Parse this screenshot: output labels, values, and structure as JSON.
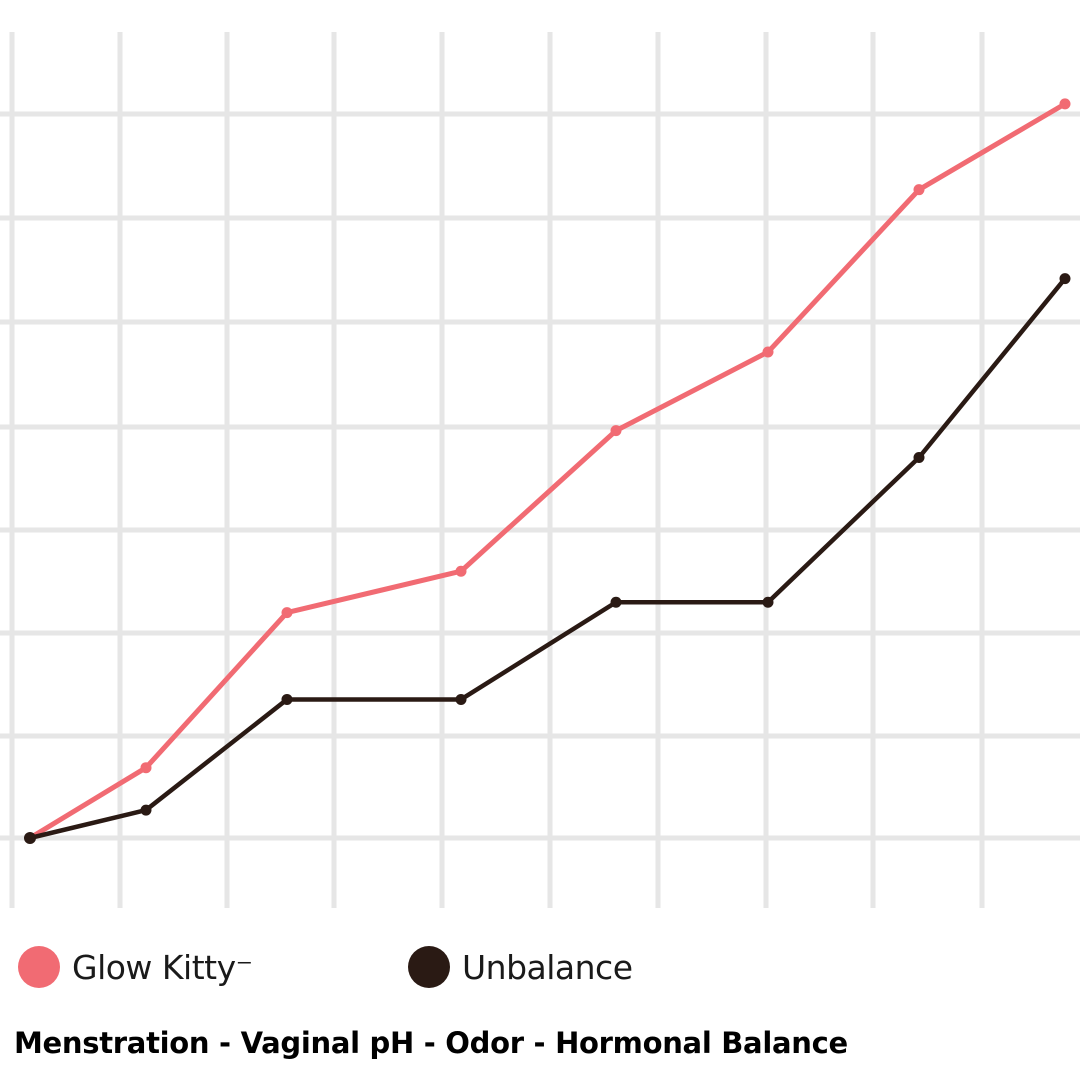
{
  "chart_data": {
    "type": "line",
    "title": "",
    "xlabel": "",
    "ylabel": "",
    "x": [
      0,
      1,
      2,
      3,
      4,
      5,
      6,
      7
    ],
    "ylim": [
      0,
      7.2
    ],
    "grid": true,
    "legend_position": "bottom",
    "series": [
      {
        "name": "Glow Kitty",
        "color": "#f16b73",
        "values": [
          0,
          0.68,
          2.18,
          2.58,
          3.94,
          4.7,
          6.27,
          7.1
        ]
      },
      {
        "name": "Unbalance",
        "color": "#2a1a14",
        "values": [
          0,
          0.27,
          1.34,
          1.34,
          2.28,
          2.28,
          3.68,
          5.41
        ]
      }
    ]
  },
  "legend": {
    "items": [
      {
        "label": "Glow Kitty⁻",
        "color": "#f16b73"
      },
      {
        "label": "Unbalance",
        "color": "#2a1a14"
      }
    ]
  },
  "caption": "Menstration - Vaginal pH - Odor - Hormonal Balance"
}
